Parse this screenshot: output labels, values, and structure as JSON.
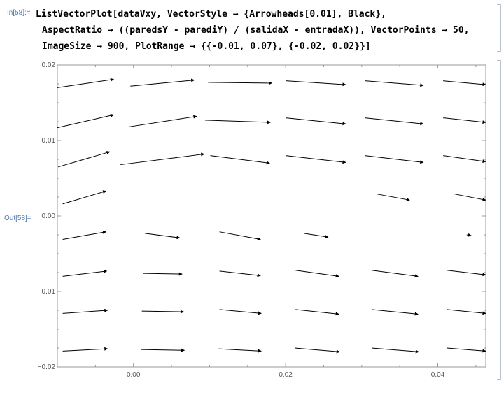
{
  "notebook": {
    "input_label": "In[58]:=",
    "output_label": "Out[58]=",
    "code_lines": [
      "ListVectorPlot[dataVxy, VectorStyle → {Arrowheads[0.01], Black},",
      "AspectRatio → ((paredsY - parediY) / (salidaX - entradaX)), VectorPoints → 50,",
      "ImageSize → 900, PlotRange → {{-0.01, 0.07}, {-0.02, 0.02}}]"
    ]
  },
  "chart_data": {
    "type": "vector",
    "title": "",
    "xlabel": "",
    "ylabel": "",
    "xlim": [
      -0.01,
      0.0463
    ],
    "ylim": [
      -0.02,
      0.02
    ],
    "x_ticks": [
      {
        "value": 0.0,
        "label": "0.00"
      },
      {
        "value": 0.02,
        "label": "0.02"
      },
      {
        "value": 0.04,
        "label": "0.04"
      }
    ],
    "y_ticks": [
      {
        "value": 0.02,
        "label": "0.02"
      },
      {
        "value": 0.01,
        "label": "0.01"
      },
      {
        "value": 0.0,
        "label": "0.00"
      },
      {
        "value": -0.01,
        "label": "−0.01"
      },
      {
        "value": -0.02,
        "label": "−0.02"
      }
    ],
    "arrow_color": "#000000",
    "vectors": [
      {
        "x": -0.01,
        "y": 0.017,
        "x2": -0.0026,
        "y2": 0.0181
      },
      {
        "x": -0.0004,
        "y": 0.0172,
        "x2": 0.008,
        "y2": 0.018
      },
      {
        "x": 0.0098,
        "y": 0.0177,
        "x2": 0.0182,
        "y2": 0.0176
      },
      {
        "x": 0.02,
        "y": 0.0179,
        "x2": 0.0279,
        "y2": 0.0174
      },
      {
        "x": 0.0304,
        "y": 0.0179,
        "x2": 0.0381,
        "y2": 0.0173
      },
      {
        "x": 0.0407,
        "y": 0.0179,
        "x2": 0.0463,
        "y2": 0.0174
      },
      {
        "x": -0.01,
        "y": 0.0117,
        "x2": -0.0026,
        "y2": 0.0134
      },
      {
        "x": -0.0007,
        "y": 0.0118,
        "x2": 0.0083,
        "y2": 0.0132
      },
      {
        "x": 0.0094,
        "y": 0.0127,
        "x2": 0.018,
        "y2": 0.0124
      },
      {
        "x": 0.02,
        "y": 0.013,
        "x2": 0.0279,
        "y2": 0.0122
      },
      {
        "x": 0.0304,
        "y": 0.013,
        "x2": 0.0381,
        "y2": 0.0122
      },
      {
        "x": 0.0407,
        "y": 0.013,
        "x2": 0.0463,
        "y2": 0.0124
      },
      {
        "x": -0.0099,
        "y": 0.0065,
        "x2": -0.0031,
        "y2": 0.0085
      },
      {
        "x": -0.0017,
        "y": 0.0068,
        "x2": 0.0093,
        "y2": 0.0082
      },
      {
        "x": 0.0101,
        "y": 0.008,
        "x2": 0.0179,
        "y2": 0.007
      },
      {
        "x": 0.02,
        "y": 0.008,
        "x2": 0.0279,
        "y2": 0.0071
      },
      {
        "x": 0.0304,
        "y": 0.008,
        "x2": 0.0381,
        "y2": 0.0071
      },
      {
        "x": 0.0407,
        "y": 0.008,
        "x2": 0.0463,
        "y2": 0.0072
      },
      {
        "x": -0.0093,
        "y": 0.0016,
        "x2": -0.0036,
        "y2": 0.0033
      },
      {
        "x": 0.032,
        "y": 0.0029,
        "x2": 0.0363,
        "y2": 0.0021
      },
      {
        "x": 0.0422,
        "y": 0.0029,
        "x2": 0.0463,
        "y2": 0.0021
      },
      {
        "x": -0.0093,
        "y": -0.0031,
        "x2": -0.0036,
        "y2": -0.0021
      },
      {
        "x": 0.0015,
        "y": -0.0023,
        "x2": 0.0061,
        "y2": -0.0029
      },
      {
        "x": 0.0113,
        "y": -0.0021,
        "x2": 0.0167,
        "y2": -0.0031
      },
      {
        "x": 0.0224,
        "y": -0.0023,
        "x2": 0.0256,
        "y2": -0.0028
      },
      {
        "x": 0.0438,
        "y": -0.0025,
        "x2": 0.0444,
        "y2": -0.0026
      },
      {
        "x": -0.0093,
        "y": -0.008,
        "x2": -0.0035,
        "y2": -0.0073
      },
      {
        "x": 0.0013,
        "y": -0.0076,
        "x2": 0.0064,
        "y2": -0.0077
      },
      {
        "x": 0.0113,
        "y": -0.0073,
        "x2": 0.0167,
        "y2": -0.0079
      },
      {
        "x": 0.0213,
        "y": -0.0072,
        "x2": 0.027,
        "y2": -0.008
      },
      {
        "x": 0.0313,
        "y": -0.0072,
        "x2": 0.0374,
        "y2": -0.008
      },
      {
        "x": 0.0412,
        "y": -0.0072,
        "x2": 0.0463,
        "y2": -0.0078
      },
      {
        "x": -0.0093,
        "y": -0.0129,
        "x2": -0.0034,
        "y2": -0.0125
      },
      {
        "x": 0.0011,
        "y": -0.0126,
        "x2": 0.0066,
        "y2": -0.0127
      },
      {
        "x": 0.0113,
        "y": -0.0124,
        "x2": 0.0168,
        "y2": -0.0129
      },
      {
        "x": 0.0213,
        "y": -0.0124,
        "x2": 0.027,
        "y2": -0.013
      },
      {
        "x": 0.0313,
        "y": -0.0124,
        "x2": 0.0374,
        "y2": -0.013
      },
      {
        "x": 0.0412,
        "y": -0.0124,
        "x2": 0.0463,
        "y2": -0.0129
      },
      {
        "x": -0.0093,
        "y": -0.0179,
        "x2": -0.0034,
        "y2": -0.0176
      },
      {
        "x": 0.001,
        "y": -0.0177,
        "x2": 0.0067,
        "y2": -0.0178
      },
      {
        "x": 0.0112,
        "y": -0.0176,
        "x2": 0.0168,
        "y2": -0.0179
      },
      {
        "x": 0.0212,
        "y": -0.0175,
        "x2": 0.0271,
        "y2": -0.018
      },
      {
        "x": 0.0313,
        "y": -0.0175,
        "x2": 0.0375,
        "y2": -0.018
      },
      {
        "x": 0.0412,
        "y": -0.0175,
        "x2": 0.0463,
        "y2": -0.0179
      }
    ]
  }
}
